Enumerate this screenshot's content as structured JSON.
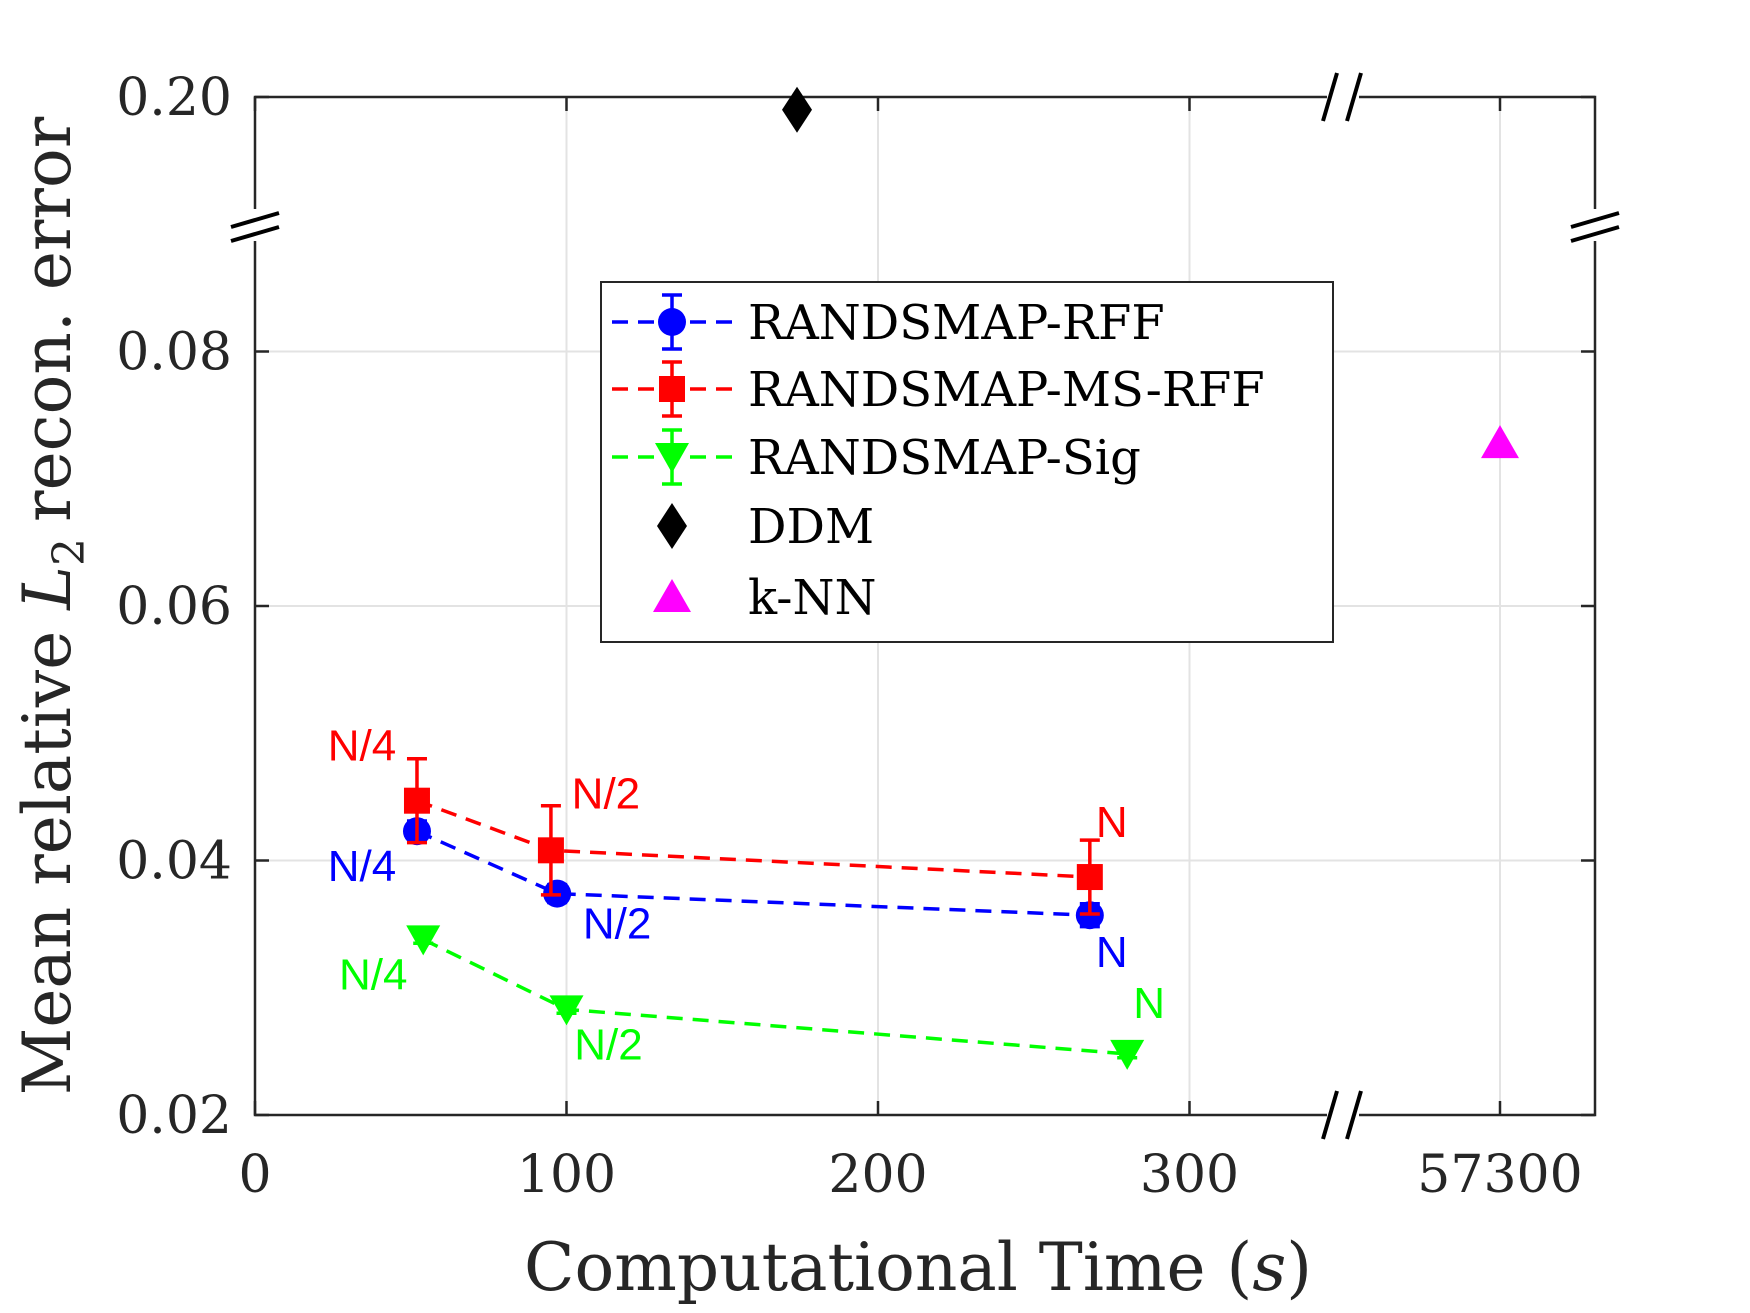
{
  "chart_data": {
    "type": "scatter",
    "title": "",
    "xlabel": "Computational Time",
    "xlabel_unit": "s",
    "ylabel": "Mean relative",
    "ylabel_symbol": "L",
    "ylabel_subscript": "2",
    "ylabel_suffix": "recon. error",
    "x_tick_labels": [
      "0",
      "100",
      "200",
      "300",
      "57300"
    ],
    "y_tick_labels": [
      "0.02",
      "0.04",
      "0.06",
      "0.08",
      "0.20"
    ],
    "axis_breaks": {
      "x": "between 300 and 57300",
      "y": "between 0.08 and 0.20",
      "symbol": "//"
    },
    "grid": true,
    "legend_position": "upper-center",
    "series": [
      {
        "name": "RANDSMAP-RFF",
        "color": "#0000ff",
        "marker": "circle",
        "line": "dashed",
        "points": [
          {
            "x": 52,
            "y": 0.0423,
            "err": 0.0008,
            "label": "N/4"
          },
          {
            "x": 97,
            "y": 0.0374,
            "err": 0.0007,
            "label": "N/2"
          },
          {
            "x": 268,
            "y": 0.0357,
            "err": 0.0009,
            "label": "N"
          }
        ]
      },
      {
        "name": "RANDSMAP-MS-RFF",
        "color": "#ff0000",
        "marker": "square",
        "line": "dashed",
        "points": [
          {
            "x": 52,
            "y": 0.0447,
            "err": 0.0033,
            "label": "N/4"
          },
          {
            "x": 95,
            "y": 0.0408,
            "err": 0.0035,
            "label": "N/2"
          },
          {
            "x": 268,
            "y": 0.0387,
            "err": 0.0029,
            "label": "N"
          }
        ]
      },
      {
        "name": "RANDSMAP-Sig",
        "color": "#00ff00",
        "marker": "triangle-down",
        "line": "dashed",
        "points": [
          {
            "x": 54,
            "y": 0.0338,
            "err": 0.0003,
            "label": "N/4"
          },
          {
            "x": 100,
            "y": 0.0283,
            "err": 0.0003,
            "label": "N/2"
          },
          {
            "x": 280,
            "y": 0.0248,
            "err": 0.0003,
            "label": "N"
          }
        ]
      },
      {
        "name": "DDM",
        "color": "#000000",
        "marker": "diamond",
        "line": "none",
        "points": [
          {
            "x": 174,
            "y": 0.194
          }
        ]
      },
      {
        "name": "k-NN",
        "color": "#ff00ff",
        "marker": "triangle-up",
        "line": "none",
        "points": [
          {
            "x": 57300,
            "y": 0.0728
          }
        ]
      }
    ]
  }
}
